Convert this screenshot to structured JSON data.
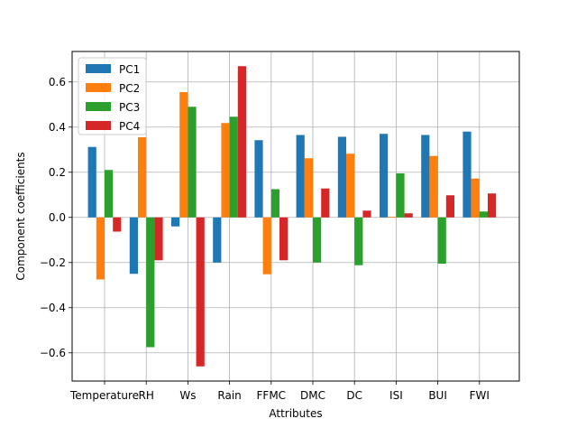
{
  "chart_data": {
    "type": "bar",
    "xlabel": "Attributes",
    "ylabel": "Component coefficients",
    "categories": [
      "Temperature",
      "RH",
      "Ws",
      "Rain",
      "FFMC",
      "DMC",
      "DC",
      "ISI",
      "BUI",
      "FWI"
    ],
    "series": [
      {
        "name": "PC1",
        "color": "#1f77b4",
        "values": [
          0.312,
          -0.25,
          -0.04,
          -0.2,
          0.342,
          0.365,
          0.357,
          0.37,
          0.365,
          0.38
        ]
      },
      {
        "name": "PC2",
        "color": "#ff7f0e",
        "values": [
          -0.275,
          0.355,
          0.555,
          0.418,
          -0.252,
          0.262,
          0.282,
          0.003,
          0.272,
          0.172
        ]
      },
      {
        "name": "PC3",
        "color": "#2ca02c",
        "values": [
          0.21,
          -0.575,
          0.49,
          0.446,
          0.125,
          -0.2,
          -0.212,
          0.195,
          -0.205,
          0.026
        ]
      },
      {
        "name": "PC4",
        "color": "#d62728",
        "values": [
          -0.063,
          -0.19,
          -0.66,
          0.67,
          -0.19,
          0.128,
          0.03,
          0.018,
          0.098,
          0.106
        ]
      }
    ],
    "ylim": [
      -0.725,
      0.735
    ],
    "yticks": [
      -0.6,
      -0.4,
      -0.2,
      0.0,
      0.2,
      0.4,
      0.6
    ],
    "ytick_labels": [
      "−0.6",
      "−0.4",
      "−0.2",
      "0.0",
      "0.2",
      "0.4",
      "0.6"
    ],
    "grid": true,
    "legend_position": "top-left"
  }
}
